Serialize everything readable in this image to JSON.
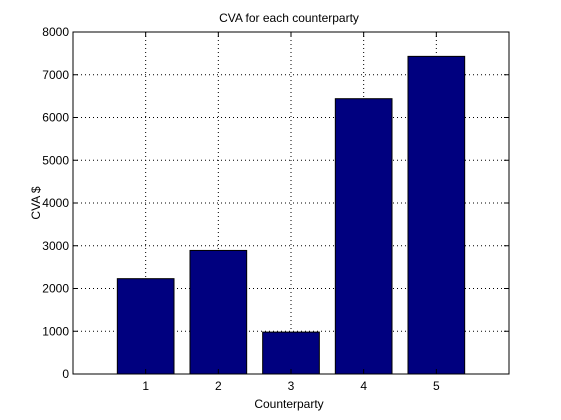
{
  "chart_data": {
    "type": "bar",
    "title": "CVA for each counterparty",
    "xlabel": "Counterparty",
    "ylabel": "CVA $",
    "categories": [
      "1",
      "2",
      "3",
      "4",
      "5"
    ],
    "values": [
      2230,
      2890,
      980,
      6440,
      7430
    ],
    "ylim": [
      0,
      8000
    ],
    "yticks": [
      0,
      1000,
      2000,
      3000,
      4000,
      5000,
      6000,
      7000,
      8000
    ],
    "grid": true,
    "bar_color": "#00007f",
    "edge_color": "#000000"
  }
}
